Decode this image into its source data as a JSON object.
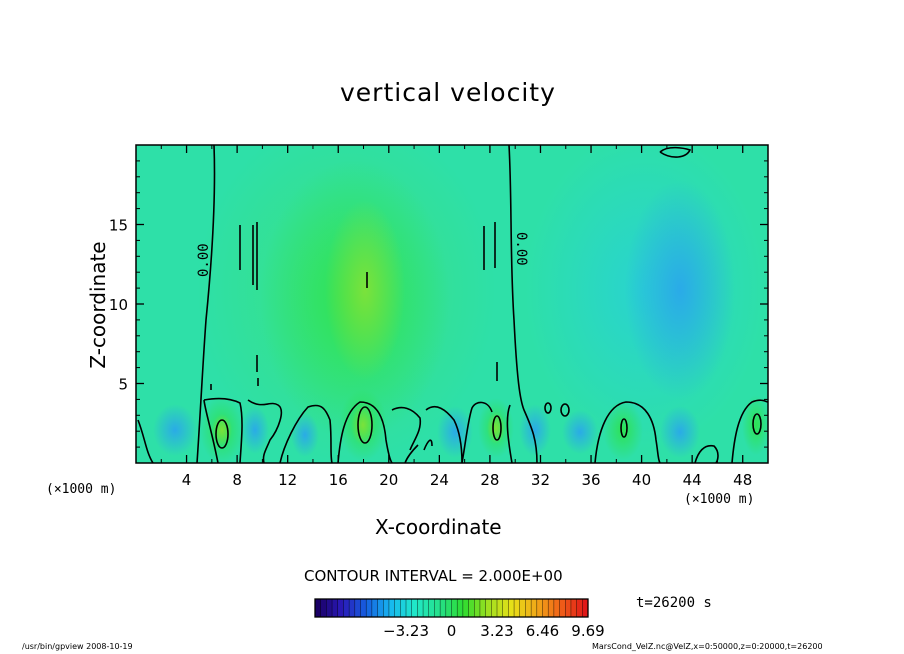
{
  "chart_data": {
    "type": "heatmap",
    "title": "vertical velocity",
    "xlabel": "X-coordinate",
    "ylabel": "Z-coordinate",
    "x_unit_left": "(×1000 m)",
    "x_unit_right": "(×1000 m)",
    "xlim": [
      0,
      50
    ],
    "ylim": [
      0,
      20
    ],
    "x_ticks": [
      4,
      8,
      12,
      16,
      20,
      24,
      28,
      32,
      36,
      40,
      44,
      48
    ],
    "x_tick_labels": [
      "4",
      "8",
      "12",
      "16",
      "20",
      "24",
      "28",
      "32",
      "36",
      "40",
      "44",
      "48"
    ],
    "y_ticks": [
      5,
      10,
      15
    ],
    "y_tick_labels": [
      "5",
      "10",
      "15"
    ],
    "contour_interval": "CONTOUR INTERVAL = 2.000E+00",
    "contour_labels": [
      "0.00",
      "0.00"
    ],
    "colorbar": {
      "min": -9.69,
      "max": 9.69,
      "ticks": [
        -3.23,
        0,
        3.23,
        6.46,
        9.69
      ],
      "tick_labels": [
        "−3.23",
        "0",
        "3.23",
        "6.46",
        "9.69"
      ],
      "colors": [
        "#1a0066",
        "#2a1ab8",
        "#1560e0",
        "#17b8f0",
        "#20e8c8",
        "#25e08a",
        "#2edc30",
        "#9ee020",
        "#e8e018",
        "#f0a818",
        "#f06018",
        "#e01818"
      ]
    },
    "time": "t=26200 s",
    "grid": false
  },
  "footer": {
    "left": "/usr/bin/gpview   2008-10-19",
    "right": "MarsCond_VelZ.nc@VelZ,x=0:50000,z=0:20000,t=26200"
  }
}
